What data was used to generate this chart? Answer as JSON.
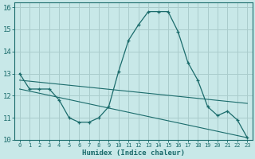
{
  "xlabel": "Humidex (Indice chaleur)",
  "background_color": "#c8e8e8",
  "grid_color": "#aacccc",
  "line_color": "#1a6b6b",
  "xlim": [
    -0.5,
    23.5
  ],
  "ylim": [
    10,
    16.2
  ],
  "xticks": [
    0,
    1,
    2,
    3,
    4,
    5,
    6,
    7,
    8,
    9,
    10,
    11,
    12,
    13,
    14,
    15,
    16,
    17,
    18,
    19,
    20,
    21,
    22,
    23
  ],
  "yticks": [
    10,
    11,
    12,
    13,
    14,
    15,
    16
  ],
  "series": [
    {
      "x": [
        0,
        1,
        2,
        3,
        4,
        5,
        6,
        7,
        8,
        9,
        10,
        11,
        12,
        13,
        14,
        15,
        16,
        17,
        18,
        19,
        20,
        21,
        22,
        23
      ],
      "y": [
        13.0,
        12.3,
        12.3,
        12.3,
        11.8,
        11.0,
        10.8,
        10.8,
        11.0,
        11.5,
        13.1,
        14.5,
        15.2,
        15.8,
        15.8,
        15.8,
        14.9,
        13.5,
        12.7,
        11.5,
        11.1,
        11.3,
        10.9,
        10.1
      ]
    },
    {
      "x": [
        0,
        23
      ],
      "y": [
        12.7,
        11.65
      ]
    },
    {
      "x": [
        0,
        23
      ],
      "y": [
        12.3,
        10.1
      ]
    }
  ]
}
